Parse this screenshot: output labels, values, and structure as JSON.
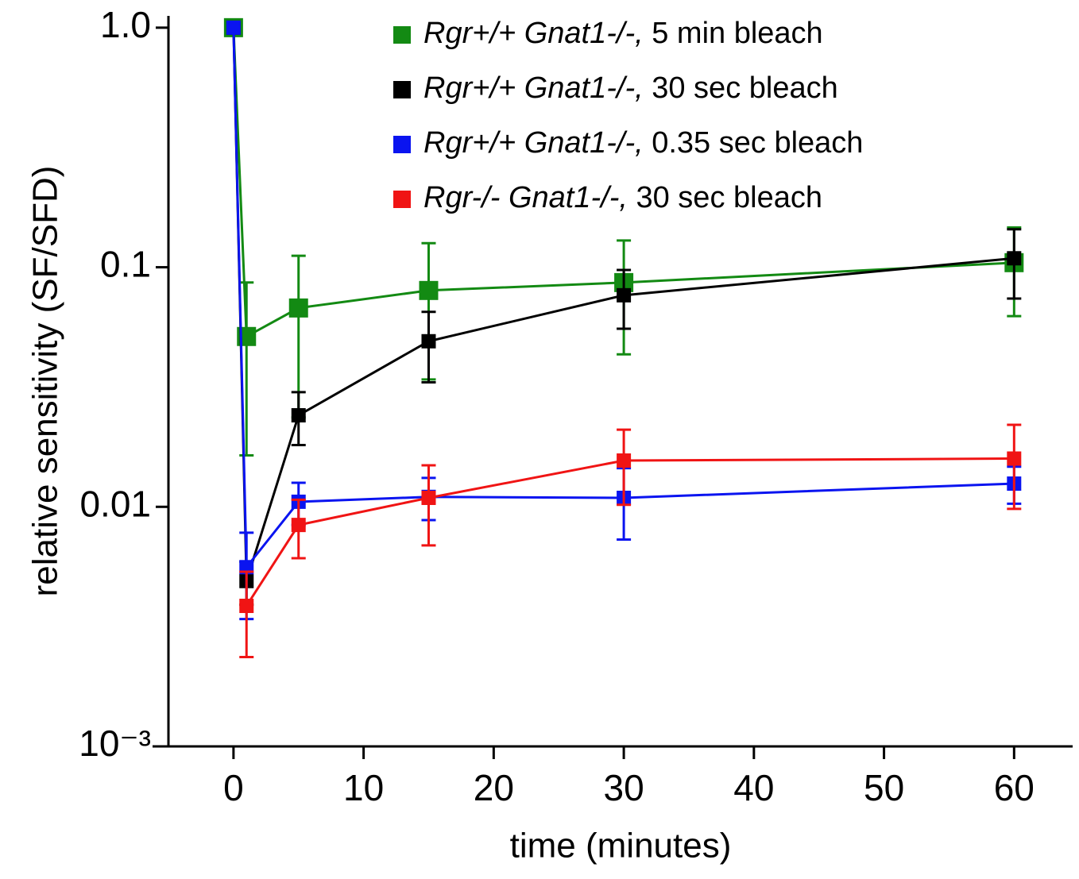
{
  "chart_data": {
    "type": "line",
    "x_label": "time (minutes)",
    "y_label": "relative sensitivity (SF/SFD)",
    "xlim": [
      -5,
      64.5
    ],
    "xticks": [
      0,
      10,
      20,
      30,
      40,
      50,
      60
    ],
    "ylim": [
      0.001,
      1.12
    ],
    "yticks": [
      {
        "value": 1,
        "label": "1.0"
      },
      0.1,
      0.01,
      {
        "value": 0.001,
        "label": "10⁻³"
      }
    ],
    "log_y": true,
    "legend": "upper right",
    "x": [
      0,
      1,
      5,
      15,
      30,
      60
    ],
    "series": [
      {
        "name": "Rgr+/+ Gnat1-/-, 5 min bleach",
        "color": "#138a13",
        "values": [
          1.0,
          0.0514,
          0.0676,
          0.08,
          0.0863,
          0.1045
        ],
        "errors": [
          null,
          0.035,
          0.044,
          0.046,
          0.043,
          0.042
        ]
      },
      {
        "name": "Rgr+/+ Gnat1-/-, 30 sec bleach",
        "color": "#000000",
        "values": [
          1.0,
          0.0049,
          0.0241,
          0.0491,
          0.0764,
          0.109
        ],
        "errors": [
          null,
          0.001,
          0.006,
          0.016,
          0.021,
          0.035
        ]
      },
      {
        "name": "Rgr+/+ Gnat1-/-, 0.35 sec bleach",
        "color": "#0a14f0",
        "values": [
          1.0,
          0.0056,
          0.0105,
          0.011,
          0.0109,
          0.0125
        ],
        "errors": [
          null,
          0.0022,
          0.0021,
          0.0022,
          0.0036,
          0.0022
        ]
      },
      {
        "name": "Rgr-/- Gnat1-/-, 30 sec bleach",
        "color": "#f01414",
        "values": [
          null,
          0.00386,
          0.0084,
          0.0109,
          0.0156,
          0.0159
        ],
        "errors": [
          null,
          0.0015,
          0.0023,
          0.004,
          0.0054,
          0.0061
        ]
      }
    ]
  }
}
